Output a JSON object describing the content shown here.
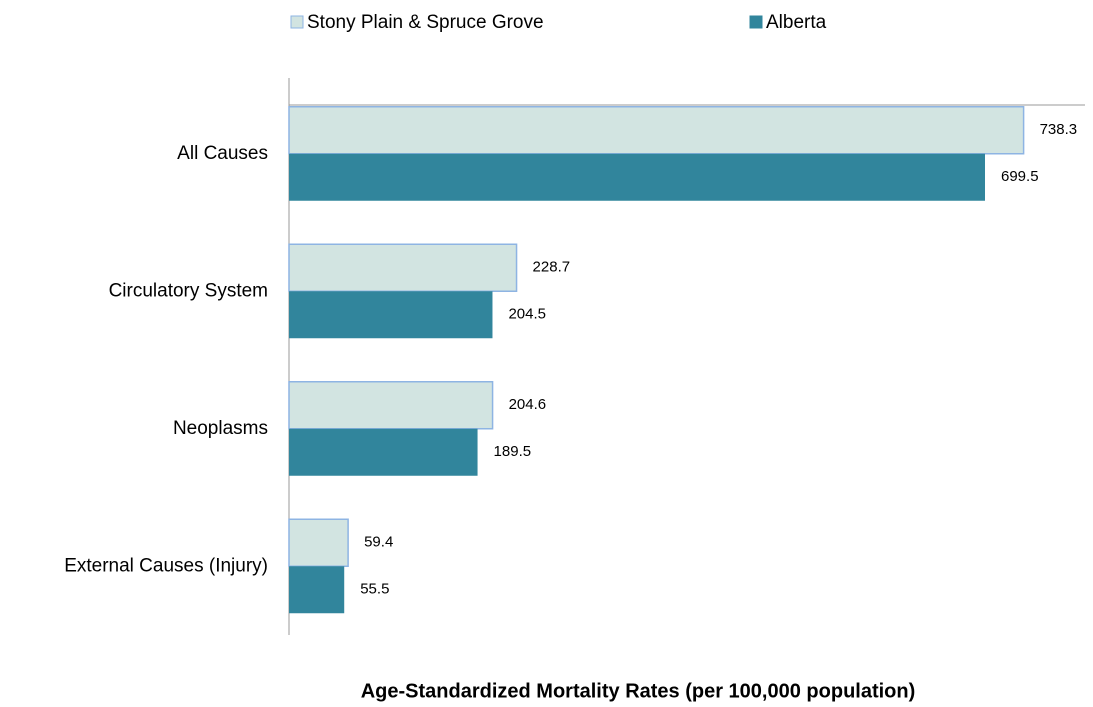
{
  "chart_data": {
    "type": "bar",
    "orientation": "horizontal",
    "x_label": "Age-Standardized Mortality Rates (per 100,000 population)",
    "categories": [
      "All Causes",
      "Circulatory System",
      "Neoplasms",
      "External Causes (Injury)"
    ],
    "series": [
      {
        "name": "Stony Plain & Spruce Grove",
        "color": "#d2e4e1",
        "edge": "#8eb4e3",
        "values": [
          738.3,
          228.7,
          204.6,
          59.4
        ]
      },
      {
        "name": "Alberta",
        "color": "#31859c",
        "values": [
          699.5,
          204.5,
          189.5,
          55.5
        ]
      }
    ],
    "xlim": [
      0,
      800
    ],
    "legend": "top",
    "grid": false
  }
}
